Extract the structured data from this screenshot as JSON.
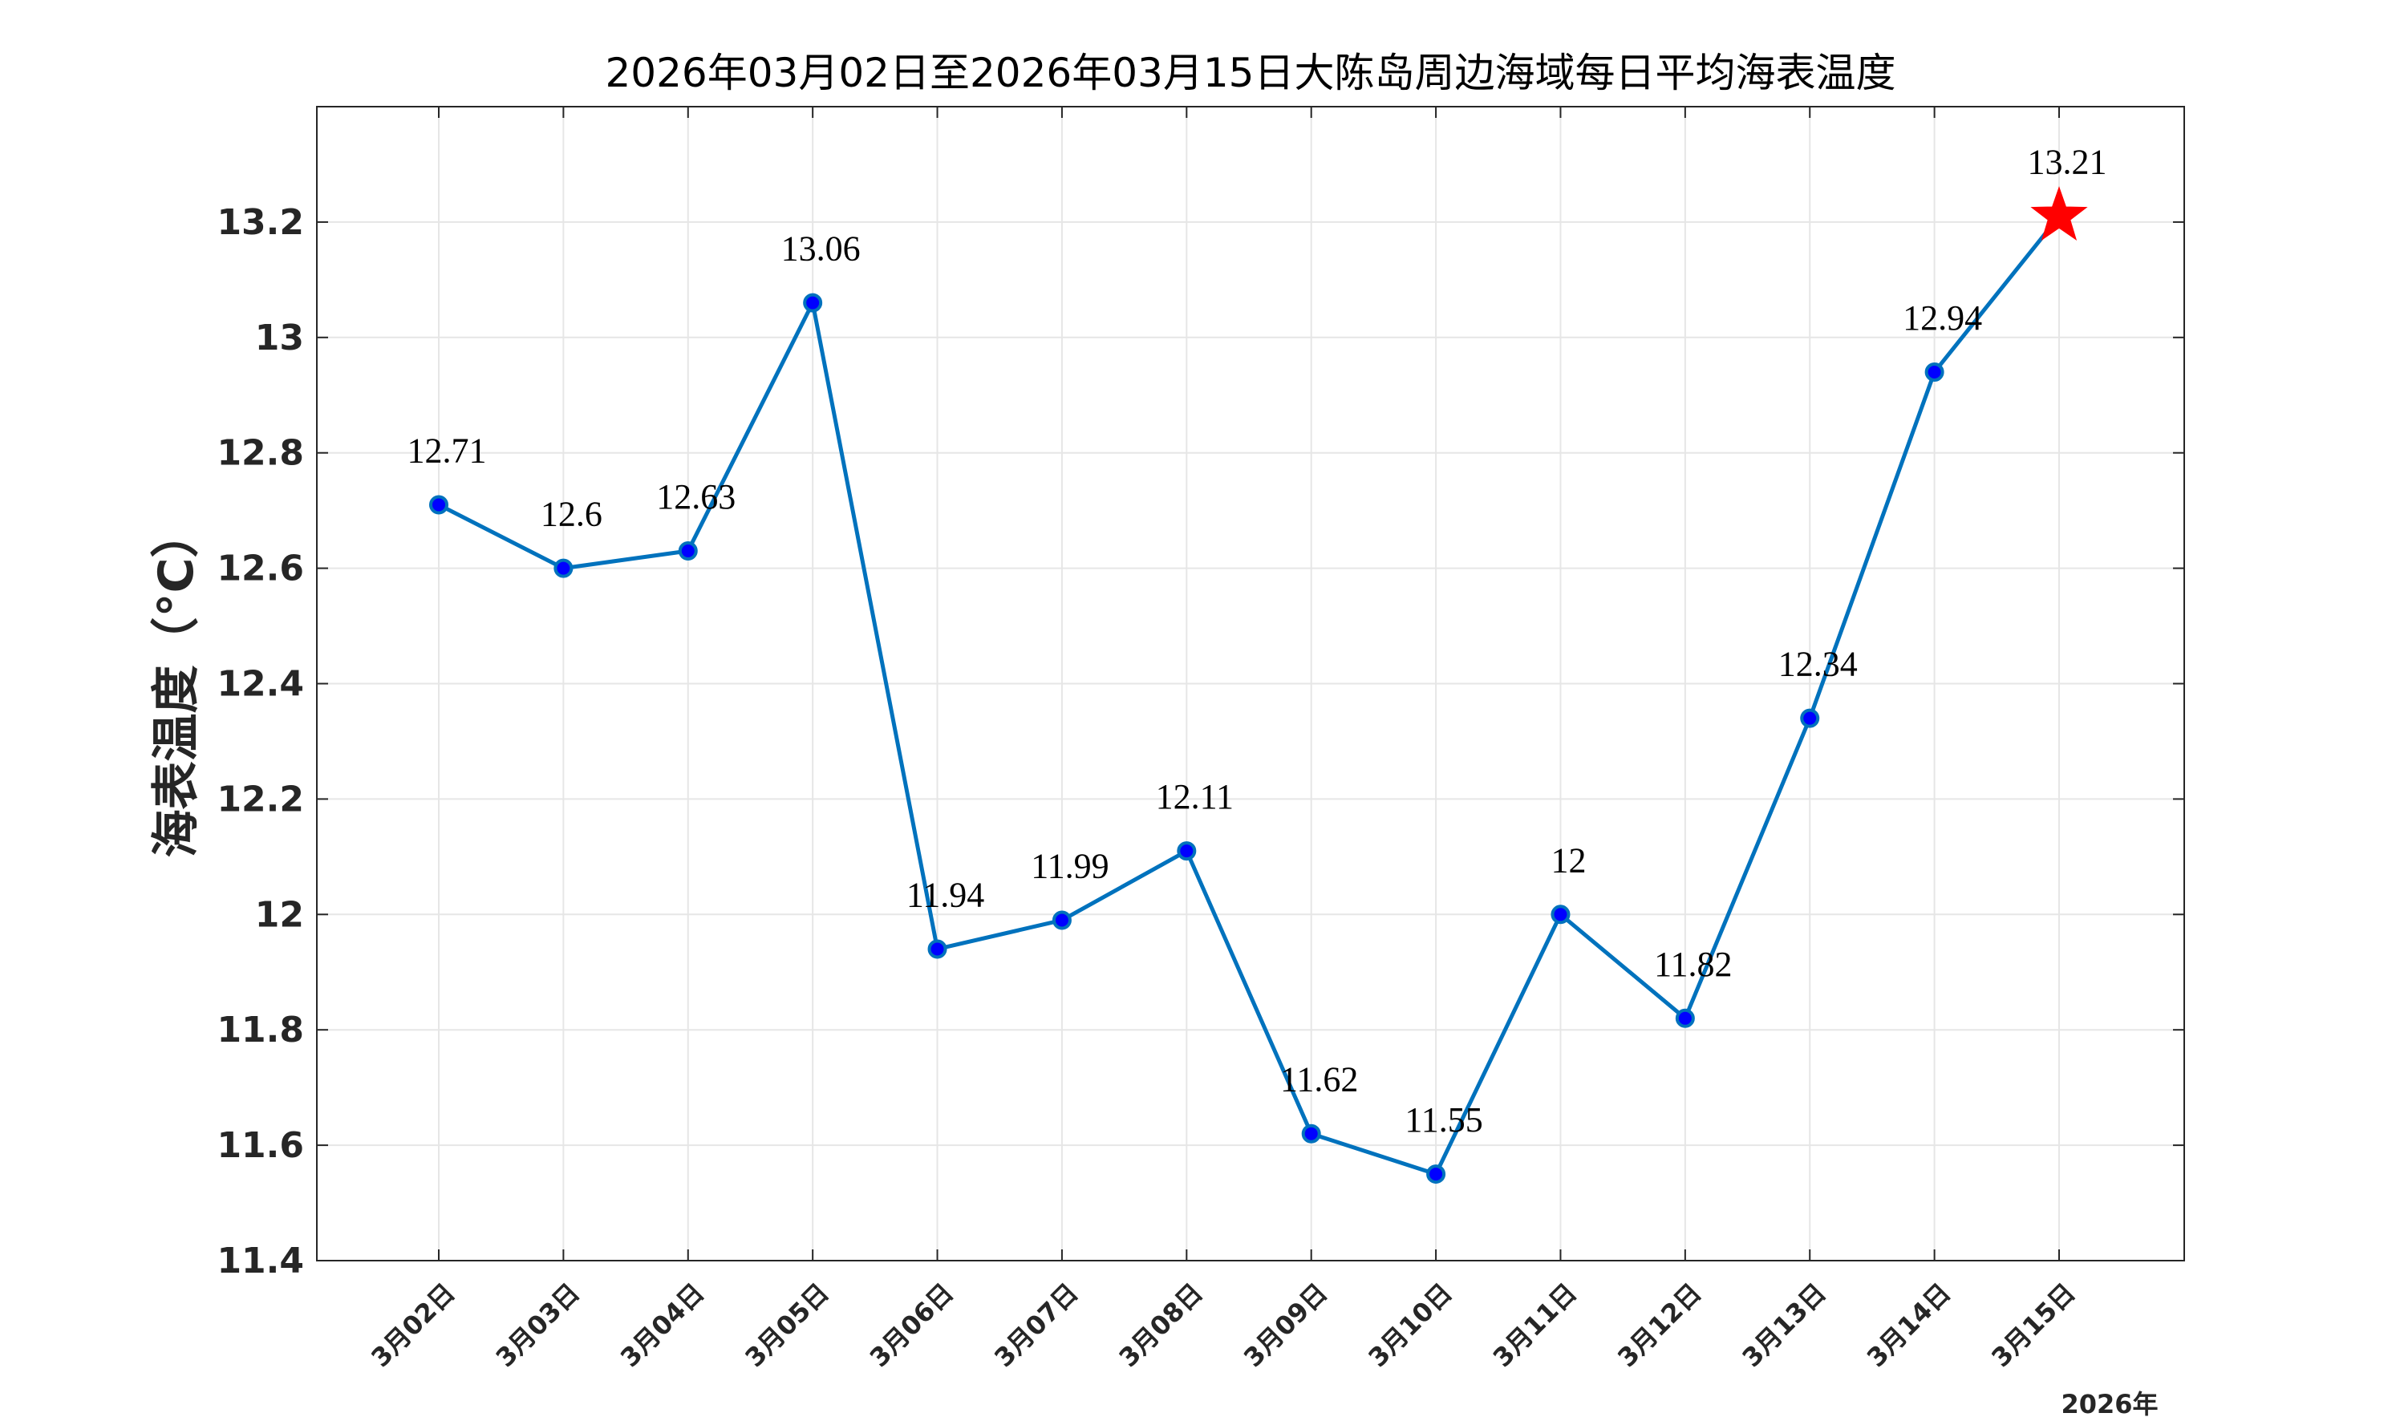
{
  "chart_data": {
    "type": "line",
    "title": "2026年03月02日至2026年03月15日大陈岛周边海域每日平均海表温度",
    "ylabel": "海表温度（°C）",
    "xlabel_year": "2026年",
    "ylim": [
      11.4,
      13.4
    ],
    "yticks": [
      11.4,
      11.6,
      11.8,
      12,
      12.2,
      12.4,
      12.6,
      12.8,
      13,
      13.2
    ],
    "ytick_labels": [
      "11.4",
      "11.6",
      "11.8",
      "12",
      "12.2",
      "12.4",
      "12.6",
      "12.8",
      "13",
      "13.2"
    ],
    "categories": [
      "3月02日",
      "3月03日",
      "3月04日",
      "3月05日",
      "3月06日",
      "3月07日",
      "3月08日",
      "3月09日",
      "3月10日",
      "3月11日",
      "3月12日",
      "3月13日",
      "3月14日",
      "3月15日"
    ],
    "values": [
      12.71,
      12.6,
      12.63,
      13.06,
      11.94,
      11.99,
      12.11,
      11.62,
      11.55,
      12,
      11.82,
      12.34,
      12.94,
      13.21
    ],
    "labels": [
      "12.71",
      "12.6",
      "12.63",
      "13.06",
      "11.94",
      "11.99",
      "12.11",
      "11.62",
      "11.55",
      "12",
      "11.82",
      "12.34",
      "12.94",
      "13.21"
    ],
    "grid": true,
    "last_point_marker": "star",
    "colors": {
      "line": "#0072BD",
      "marker_fill": "#0000FF",
      "star": "#FF0000",
      "grid": "#E6E6E6",
      "axis": "#262626"
    }
  }
}
